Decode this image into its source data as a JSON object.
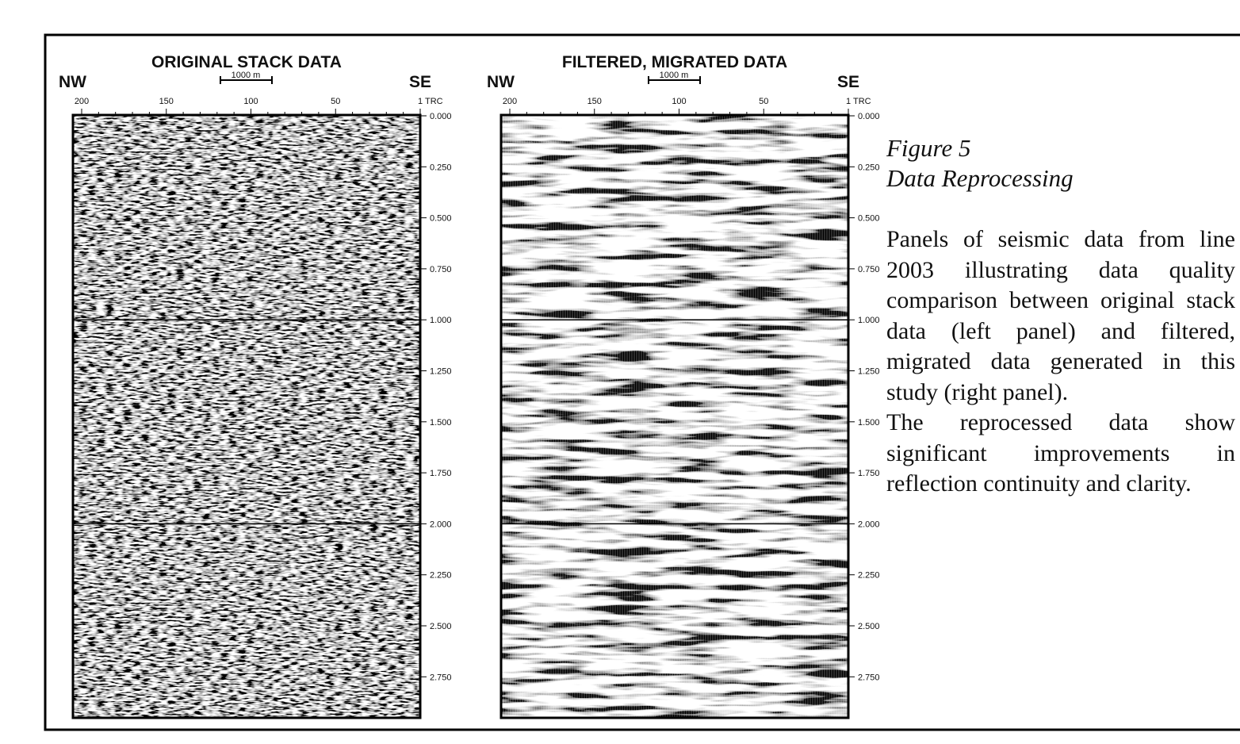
{
  "panels": [
    {
      "title": "ORIGINAL STACK DATA",
      "left_label": "NW",
      "right_label": "SE",
      "scale_bar": "1000 m",
      "trace_ticks": [
        "200",
        "150",
        "100",
        "50",
        "1 TRC"
      ],
      "time_ticks": [
        "0.000",
        "0.250",
        "0.500",
        "0.750",
        "1.000",
        "1.250",
        "1.500",
        "1.750",
        "2.000",
        "2.250",
        "2.500",
        "2.750"
      ]
    },
    {
      "title": "FILTERED, MIGRATED DATA",
      "left_label": "NW",
      "right_label": "SE",
      "scale_bar": "1000 m",
      "trace_ticks": [
        "200",
        "150",
        "100",
        "50",
        "1 TRC"
      ],
      "time_ticks": [
        "0.000",
        "0.250",
        "0.500",
        "0.750",
        "1.000",
        "1.250",
        "1.500",
        "1.750",
        "2.000",
        "2.250",
        "2.500",
        "2.750"
      ]
    }
  ],
  "caption": {
    "figure": "Figure 5",
    "title": "Data Reprocessing",
    "paragraphs": [
      "Panels of seismic data from line 2003 illustrating data quality comparison between original stack data (left panel) and filtered, migrated data generated in this study (right panel).",
      "The reprocessed data show significant improvements in reflection continuity and clarity."
    ]
  }
}
